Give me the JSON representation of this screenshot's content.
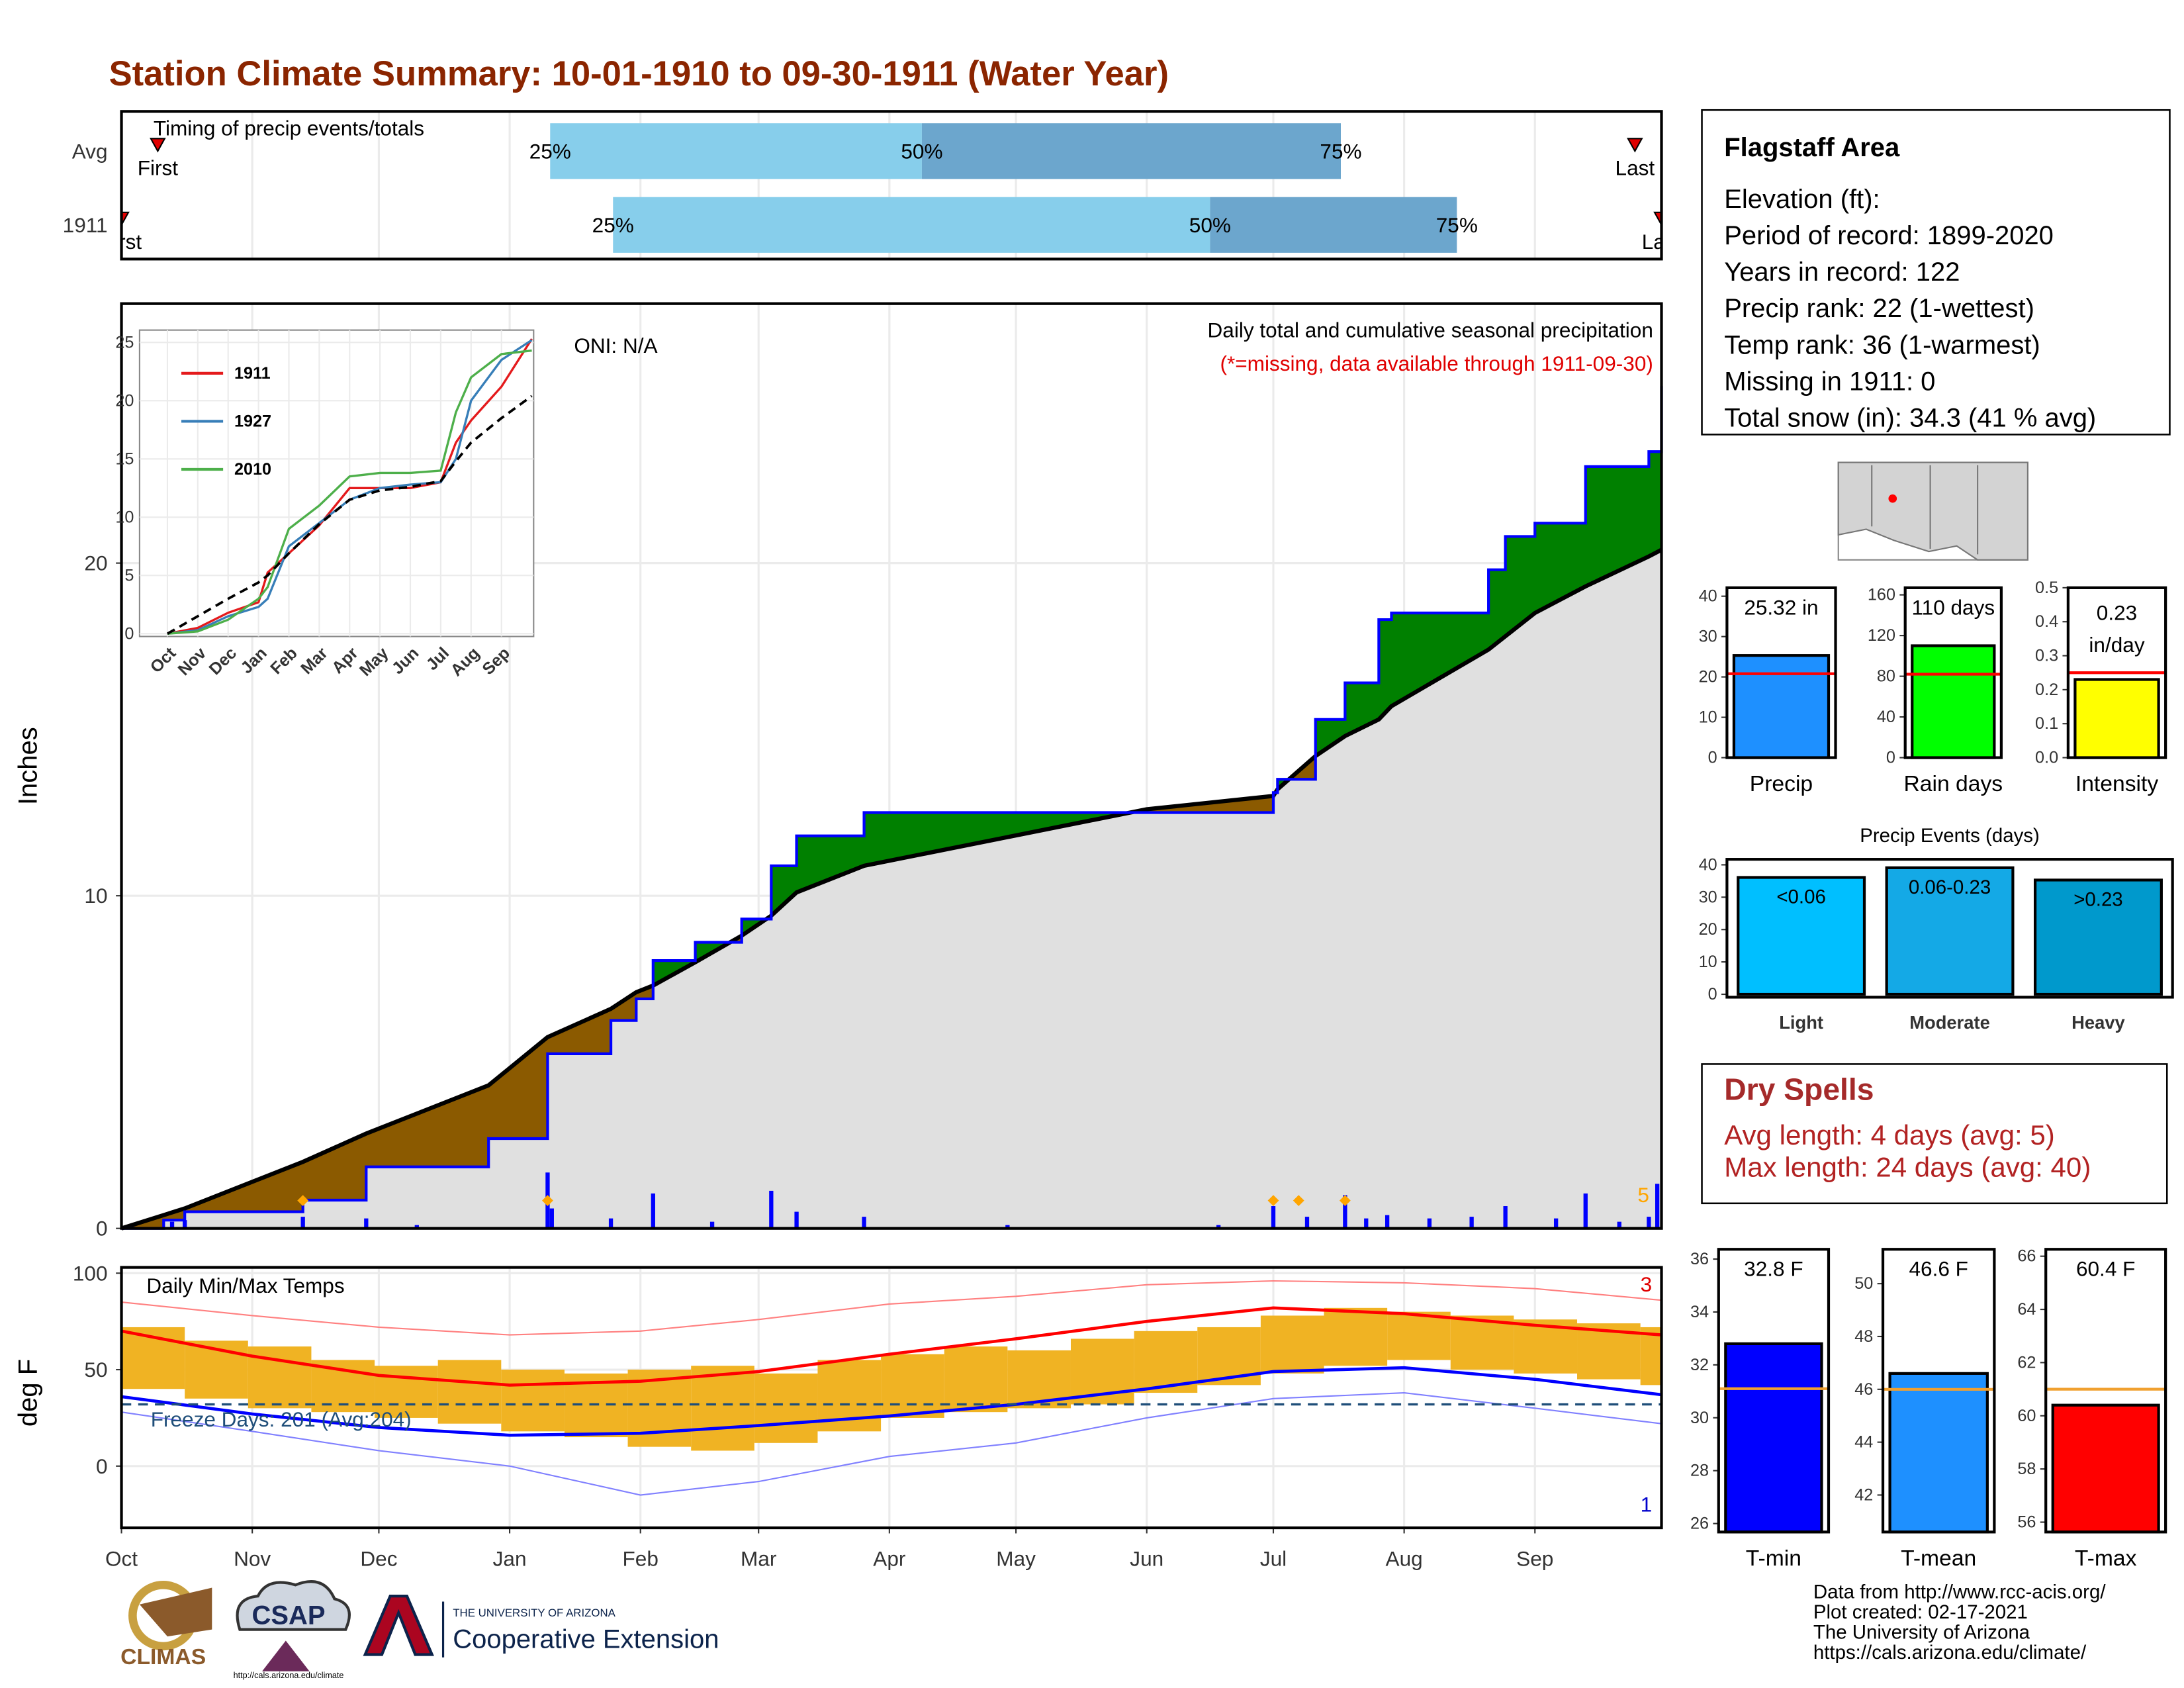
{
  "title": "Station Climate Summary: 10-01-1910 to 09-30-1911 (Water Year)",
  "info": {
    "title": "Flagstaff Area",
    "lines": [
      "Elevation (ft):",
      "Period of record: 1899-2020",
      "Years in record: 122",
      "Precip rank: 22 (1-wettest)",
      "Temp rank: 36 (1-warmest)",
      "Missing in 1911: 0",
      "Total snow (in): 34.3 (41 % avg)"
    ]
  },
  "dry_spells": {
    "title": "Dry Spells",
    "lines": [
      "Avg length: 4 days (avg: 5)",
      "Max length: 24 days (avg: 40)"
    ]
  },
  "credits": [
    "Data from http://www.rcc-acis.org/",
    "Plot created: 02-17-2021",
    "The University of Arizona",
    "https://cals.arizona.edu/climate/"
  ],
  "logos": {
    "climas": "CLIMAS",
    "csap": "CSAP",
    "csap_url": "http://cals.arizona.edu/climate",
    "university": "THE UNIVERSITY OF ARIZONA",
    "extension": "Cooperative Extension"
  },
  "chart_data": [
    {
      "type": "timing",
      "title": "Timing of precip events/totals",
      "xlim": [
        0,
        365
      ],
      "rows": [
        {
          "name": "Avg",
          "first": 8.6,
          "q25": 101.6,
          "q50": 189.7,
          "q75": 289,
          "last": 358.7
        },
        {
          "name": "1911",
          "first": 0,
          "q25": 116.5,
          "q50": 258,
          "q75": 316.5,
          "last": 365
        }
      ],
      "labels": {
        "first": "First",
        "last": "Last",
        "q25": "25%",
        "q50": "50%",
        "q75": "75%"
      },
      "colors": {
        "early": "#87ceeb",
        "late": "#6ca6cd",
        "marker": "#e00000"
      }
    },
    {
      "type": "area",
      "ylabel": "Inches",
      "annotations": {
        "oni": "ONI: N/A",
        "subtitle": "Daily total and cumulative seasonal precipitation",
        "note": "(*=missing, data available through 1911-09-30)",
        "count": "5"
      },
      "xlim": [
        0,
        365
      ],
      "ylim": [
        0,
        27.8
      ],
      "yticks": [
        0,
        10,
        20
      ],
      "grid": true,
      "x": [
        0,
        10,
        15,
        43,
        58,
        87,
        101,
        116,
        122,
        126,
        136,
        147,
        154,
        160,
        176,
        243,
        273,
        274,
        283,
        290,
        298,
        301,
        324,
        328,
        335,
        347,
        362,
        365
      ],
      "series": [
        {
          "color": "#0000ff",
          "values": [
            0,
            0.25,
            0.5,
            0.85,
            1.85,
            2.7,
            5.25,
            6.25,
            6.9,
            8.05,
            8.6,
            9.3,
            10.9,
            11.8,
            12.5,
            12.5,
            13.1,
            13.5,
            15.3,
            16.4,
            18.3,
            18.5,
            19.8,
            20.8,
            21.2,
            22.9,
            23.35,
            25.32
          ]
        },
        {
          "color": "#000000",
          "values": [
            0,
            0.4,
            0.6,
            2.0,
            2.85,
            4.3,
            5.75,
            6.6,
            7.1,
            7.3,
            8.0,
            8.8,
            9.4,
            10.1,
            10.9,
            12.6,
            13.0,
            13.2,
            14.2,
            14.8,
            15.3,
            15.7,
            17.4,
            17.8,
            18.5,
            19.3,
            20.2,
            20.4
          ]
        }
      ],
      "fill_colors": {
        "above": "#008000",
        "below": "#8b5a00",
        "base": "#e0e0e0"
      },
      "daily": {
        "color": "#0000ff",
        "x": [
          12,
          15,
          43,
          58,
          70,
          101,
          102,
          116,
          126,
          140,
          154,
          160,
          176,
          210,
          260,
          273,
          281,
          290,
          295,
          300,
          310,
          320,
          328,
          340,
          347,
          355,
          362,
          364
        ],
        "values": [
          0.2,
          0.25,
          0.35,
          0.3,
          0.1,
          1.68,
          0.6,
          0.3,
          1.05,
          0.2,
          1.13,
          0.5,
          0.35,
          0.1,
          0.1,
          0.67,
          0.35,
          1.0,
          0.3,
          0.4,
          0.3,
          0.35,
          0.67,
          0.3,
          1.05,
          0.2,
          0.35,
          1.34
        ]
      },
      "record_days": [
        43,
        101,
        273,
        279,
        290
      ],
      "record_color": "#ffa500"
    },
    {
      "type": "line",
      "xlim": [
        0,
        12.06
      ],
      "ylim": [
        0,
        25.7
      ],
      "yticks": [
        0,
        5,
        10,
        15,
        20,
        25
      ],
      "grid": true,
      "legend": "top-left",
      "xticks": [
        {
          "value": 0,
          "label": "Oct"
        },
        {
          "value": 1,
          "label": "Nov"
        },
        {
          "value": 2,
          "label": "Dec"
        },
        {
          "value": 3,
          "label": "Jan"
        },
        {
          "value": 4,
          "label": "Feb"
        },
        {
          "value": 5,
          "label": "Mar"
        },
        {
          "value": 6,
          "label": "Apr"
        },
        {
          "value": 7,
          "label": "May"
        },
        {
          "value": 8,
          "label": "Jun"
        },
        {
          "value": 9,
          "label": "Jul"
        },
        {
          "value": 10,
          "label": "Aug"
        },
        {
          "value": 11,
          "label": "Sep"
        }
      ],
      "x": [
        0,
        1,
        2,
        3,
        3.3,
        4,
        5,
        6,
        7,
        8,
        9,
        9.5,
        10,
        11,
        12
      ],
      "series": [
        {
          "name": "1911",
          "color": "#e41a1c",
          "values": [
            0,
            0.5,
            1.8,
            2.7,
            5.25,
            6.9,
            9.3,
            12.5,
            12.5,
            12.5,
            13.0,
            16.4,
            18.3,
            21.2,
            25.3
          ]
        },
        {
          "name": "1927",
          "color": "#377eb8",
          "values": [
            0,
            0.3,
            1.5,
            2.3,
            3,
            7.5,
            9.5,
            11.5,
            12.5,
            12.8,
            13,
            15,
            20,
            23.5,
            25.2
          ]
        },
        {
          "name": "2010",
          "color": "#4daf4a",
          "values": [
            0,
            0.2,
            1.2,
            3,
            4,
            9,
            11,
            13.5,
            13.8,
            13.8,
            14,
            19,
            22,
            24,
            24.3
          ]
        },
        {
          "color": "#000000",
          "dashed": true,
          "values": [
            0,
            1.5,
            3.0,
            4.4,
            5.0,
            6.9,
            9.4,
            11.5,
            12.3,
            12.6,
            13.1,
            14.8,
            16.4,
            18.5,
            20.4
          ]
        }
      ]
    },
    {
      "type": "bar",
      "categories": [
        "Precip"
      ],
      "values": [
        25.32
      ],
      "value_labels": [
        "25.32 in"
      ],
      "average": 20.8,
      "avg_color": "#ff0000",
      "color": "#1e90ff",
      "ylim": [
        0,
        42.1
      ],
      "yticks": [
        0,
        10,
        20,
        30,
        40
      ]
    },
    {
      "type": "bar",
      "categories": [
        "Rain days"
      ],
      "values": [
        110
      ],
      "value_labels": [
        "110 days"
      ],
      "average": 82,
      "avg_color": "#ff0000",
      "color": "#00ff00",
      "ylim": [
        0,
        167
      ],
      "yticks": [
        0,
        40,
        80,
        120,
        160
      ]
    },
    {
      "type": "bar",
      "categories": [
        "Intensity"
      ],
      "values": [
        0.23
      ],
      "value_labels": [
        "0.23 in/day"
      ],
      "average": 0.25,
      "avg_color": "#ff0000",
      "color": "#ffff00",
      "ylim": [
        0,
        0.5
      ],
      "yticks": [
        {
          "value": 0,
          "label": "0.0"
        },
        0.1,
        0.2,
        0.3,
        0.4,
        0.5
      ]
    },
    {
      "type": "bar",
      "title": "Precip Events (days)",
      "categories": [
        "Light",
        "Moderate",
        "Heavy"
      ],
      "values": [
        36.1,
        39.1,
        35.3
      ],
      "bin_labels": [
        "<0.06",
        "0.06-0.23",
        ">0.23"
      ],
      "colors": [
        "#00bfff",
        "#14a9e6",
        "#0099cc"
      ],
      "ylim": [
        -0.9,
        41.7
      ],
      "yticks": [
        0,
        10,
        20,
        30,
        40
      ]
    },
    {
      "type": "bar",
      "categories": [
        "T-min"
      ],
      "values": [
        32.8
      ],
      "value_labels": [
        "32.8 F"
      ],
      "average": 31.1,
      "avg_color": "#f0a030",
      "color": "#0000ff",
      "ylim": [
        25.68,
        36.37
      ],
      "yticks": [
        26,
        28,
        30,
        32,
        34,
        36
      ]
    },
    {
      "type": "bar",
      "categories": [
        "T-mean"
      ],
      "values": [
        46.6
      ],
      "value_labels": [
        "46.6 F"
      ],
      "average": 46.0,
      "avg_color": "#f0a030",
      "color": "#1e90ff",
      "ylim": [
        40.6,
        51.3
      ],
      "yticks": [
        42,
        44,
        46,
        48,
        50
      ]
    },
    {
      "type": "bar",
      "categories": [
        "T-max"
      ],
      "values": [
        60.4
      ],
      "value_labels": [
        "60.4 F"
      ],
      "average": 61.0,
      "avg_color": "#f0a030",
      "color": "#ff0000",
      "ylim": [
        55.63,
        66.26
      ],
      "yticks": [
        56,
        58,
        60,
        62,
        64,
        66
      ]
    },
    {
      "type": "temperature",
      "title": "Daily Min/Max Temps",
      "ylabel": "deg F",
      "annotations": {
        "freeze": "Freeze Days: 201 (Avg:204)",
        "high_count": "3",
        "low_count": "1"
      },
      "xlim": [
        0,
        365
      ],
      "ylim": [
        -32,
        103
      ],
      "yticks": [
        0,
        50,
        100
      ],
      "grid": true,
      "freeze_line": 32,
      "freeze_color": "#1f4e79",
      "xticks": [
        {
          "value": 0,
          "label": "Oct"
        },
        {
          "value": 31,
          "label": "Nov"
        },
        {
          "value": 61,
          "label": "Dec"
        },
        {
          "value": 92,
          "label": "Jan"
        },
        {
          "value": 123,
          "label": "Feb"
        },
        {
          "value": 151,
          "label": "Mar"
        },
        {
          "value": 182,
          "label": "Apr"
        },
        {
          "value": 212,
          "label": "May"
        },
        {
          "value": 243,
          "label": "Jun"
        },
        {
          "value": 273,
          "label": "Jul"
        },
        {
          "value": 304,
          "label": "Aug"
        },
        {
          "value": 335,
          "label": "Sep"
        }
      ],
      "range_color": "#f0b323",
      "days": [
        0,
        15,
        30,
        45,
        60,
        75,
        90,
        105,
        120,
        135,
        150,
        165,
        180,
        195,
        210,
        225,
        240,
        255,
        270,
        285,
        300,
        315,
        330,
        345,
        360
      ],
      "max": [
        72,
        65,
        62,
        55,
        52,
        55,
        50,
        48,
        50,
        52,
        48,
        55,
        58,
        62,
        60,
        66,
        70,
        72,
        78,
        82,
        80,
        78,
        76,
        74,
        72
      ],
      "min": [
        40,
        35,
        30,
        28,
        25,
        22,
        18,
        15,
        10,
        8,
        12,
        18,
        25,
        28,
        30,
        32,
        38,
        42,
        48,
        52,
        55,
        50,
        48,
        45,
        42
      ],
      "x": [
        0,
        31,
        61,
        92,
        123,
        151,
        182,
        212,
        243,
        273,
        304,
        335,
        365
      ],
      "series": [
        {
          "color": "#ff0000",
          "values": [
            70,
            57,
            47,
            42,
            44,
            49,
            58,
            66,
            75,
            82,
            79,
            73,
            68
          ]
        },
        {
          "color": "#0000ff",
          "values": [
            36,
            27,
            20,
            16,
            17,
            21,
            26,
            32,
            40,
            49,
            51,
            45,
            37
          ]
        },
        {
          "color": "#ff8080",
          "thin": true,
          "values": [
            85,
            78,
            72,
            68,
            70,
            76,
            84,
            88,
            94,
            96,
            95,
            92,
            86
          ]
        },
        {
          "color": "#8080ff",
          "thin": true,
          "values": [
            28,
            18,
            8,
            0,
            -15,
            -8,
            5,
            12,
            25,
            35,
            38,
            30,
            22
          ]
        }
      ]
    }
  ]
}
